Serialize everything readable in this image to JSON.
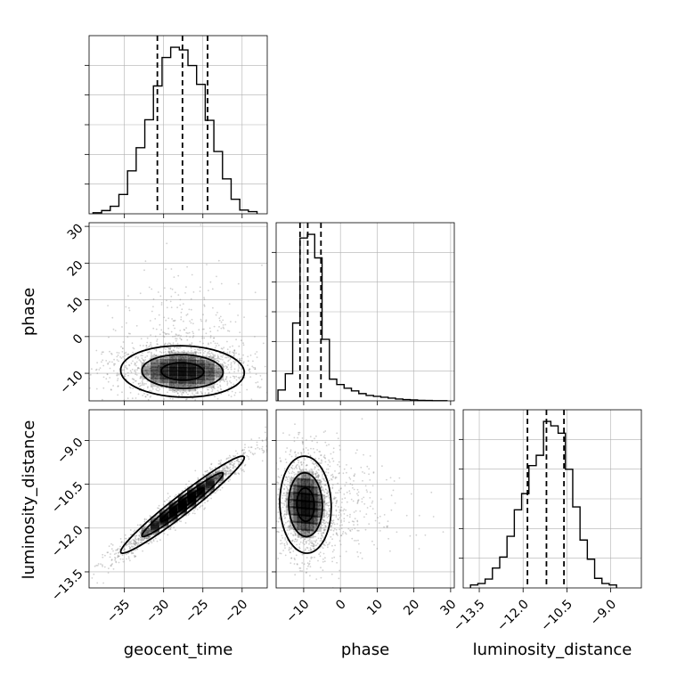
{
  "chart_data": {
    "type": "corner",
    "grid": true,
    "parameters": [
      "geocent_time",
      "phase",
      "luminosity_distance"
    ],
    "axis_labels": {
      "x": [
        "geocent_time",
        "phase",
        "luminosity_distance"
      ],
      "y": [
        "phase",
        "luminosity_distance"
      ]
    },
    "ranges": {
      "geocent_time": [
        -39.5,
        -16.8
      ],
      "phase": [
        -17.5,
        31
      ],
      "luminosity_distance": [
        -14.05,
        -7.95
      ]
    },
    "ticks": {
      "geocent_time": [
        -35,
        -30,
        -25,
        -20
      ],
      "phase": [
        -10,
        0,
        10,
        20,
        30
      ],
      "luminosity_distance": [
        -13.5,
        -12.0,
        -10.5,
        -9.0
      ]
    },
    "tick_labels": {
      "geocent_time": [
        "−35",
        "−30",
        "−25",
        "−20"
      ],
      "phase": [
        "−10",
        "0",
        "10",
        "20",
        "30"
      ],
      "luminosity_distance": [
        "−13.5",
        "−12.0",
        "−10.5",
        "−9.0"
      ]
    },
    "quantiles": {
      "geocent_time": [
        -30.8,
        -27.6,
        -24.4
      ],
      "phase": [
        -11.0,
        -8.9,
        -5.3
      ],
      "luminosity_distance": [
        -11.85,
        -11.2,
        -10.6
      ]
    },
    "hist_1d": {
      "geocent_time": {
        "edges": [
          -39.0,
          -37.9,
          -36.8,
          -35.7,
          -34.6,
          -33.5,
          -32.4,
          -31.3,
          -30.2,
          -29.1,
          -28.0,
          -26.9,
          -25.8,
          -24.7,
          -23.6,
          -22.5,
          -21.4,
          -20.3,
          -19.2,
          -18.1
        ],
        "counts": [
          2,
          6,
          14,
          36,
          80,
          123,
          175,
          238,
          291,
          310,
          305,
          276,
          241,
          174,
          116,
          65,
          27,
          7,
          4
        ]
      },
      "phase": {
        "edges": [
          -17.0,
          -15.0,
          -13.0,
          -11.0,
          -9.0,
          -7.0,
          -5.0,
          -3.0,
          -1.0,
          1.0,
          3.0,
          5.0,
          7.0,
          9.0,
          11.0,
          13.0,
          15.0,
          17.0,
          19.0,
          21.0,
          23.0,
          25.0,
          27.0,
          29.0
        ],
        "counts": [
          60,
          150,
          430,
          900,
          920,
          790,
          340,
          120,
          90,
          70,
          55,
          40,
          30,
          25,
          20,
          15,
          10,
          7,
          5,
          3,
          2,
          1,
          1
        ]
      },
      "luminosity_distance": {
        "edges": [
          -13.8,
          -13.55,
          -13.3,
          -13.05,
          -12.8,
          -12.55,
          -12.3,
          -12.05,
          -11.8,
          -11.55,
          -11.3,
          -11.05,
          -10.8,
          -10.55,
          -10.3,
          -10.05,
          -9.8,
          -9.55,
          -9.3,
          -9.05,
          -8.8
        ],
        "counts": [
          4,
          6,
          12,
          27,
          42,
          70,
          106,
          128,
          166,
          180,
          226,
          220,
          210,
          161,
          110,
          65,
          39,
          13,
          6,
          4
        ]
      }
    },
    "pairs": [
      {
        "x": "geocent_time",
        "y": "phase",
        "center": [
          -27.6,
          -9.5
        ],
        "spread": [
          4.5,
          4.0
        ],
        "correlation": -0.05,
        "tail": "phase scatter extends to +25",
        "contour_levels": [
          "inner",
          "middle",
          "outer"
        ]
      },
      {
        "x": "geocent_time",
        "y": "luminosity_distance",
        "center": [
          -27.6,
          -11.2
        ],
        "spread": [
          4.5,
          0.95
        ],
        "correlation": 0.97,
        "contour_levels": [
          "inner",
          "middle",
          "outer"
        ]
      },
      {
        "x": "phase",
        "y": "luminosity_distance",
        "center": [
          -9.5,
          -11.2
        ],
        "spread": [
          4.0,
          0.95
        ],
        "correlation": -0.05,
        "tail": "phase scatter extends to +25",
        "contour_levels": [
          "inner",
          "middle",
          "outer"
        ]
      }
    ]
  },
  "colors": {
    "histogram": "#000000",
    "contour": "#000000",
    "scatter": "#7a7a7a",
    "grid": "#b0b0b0",
    "density": "#000000"
  }
}
